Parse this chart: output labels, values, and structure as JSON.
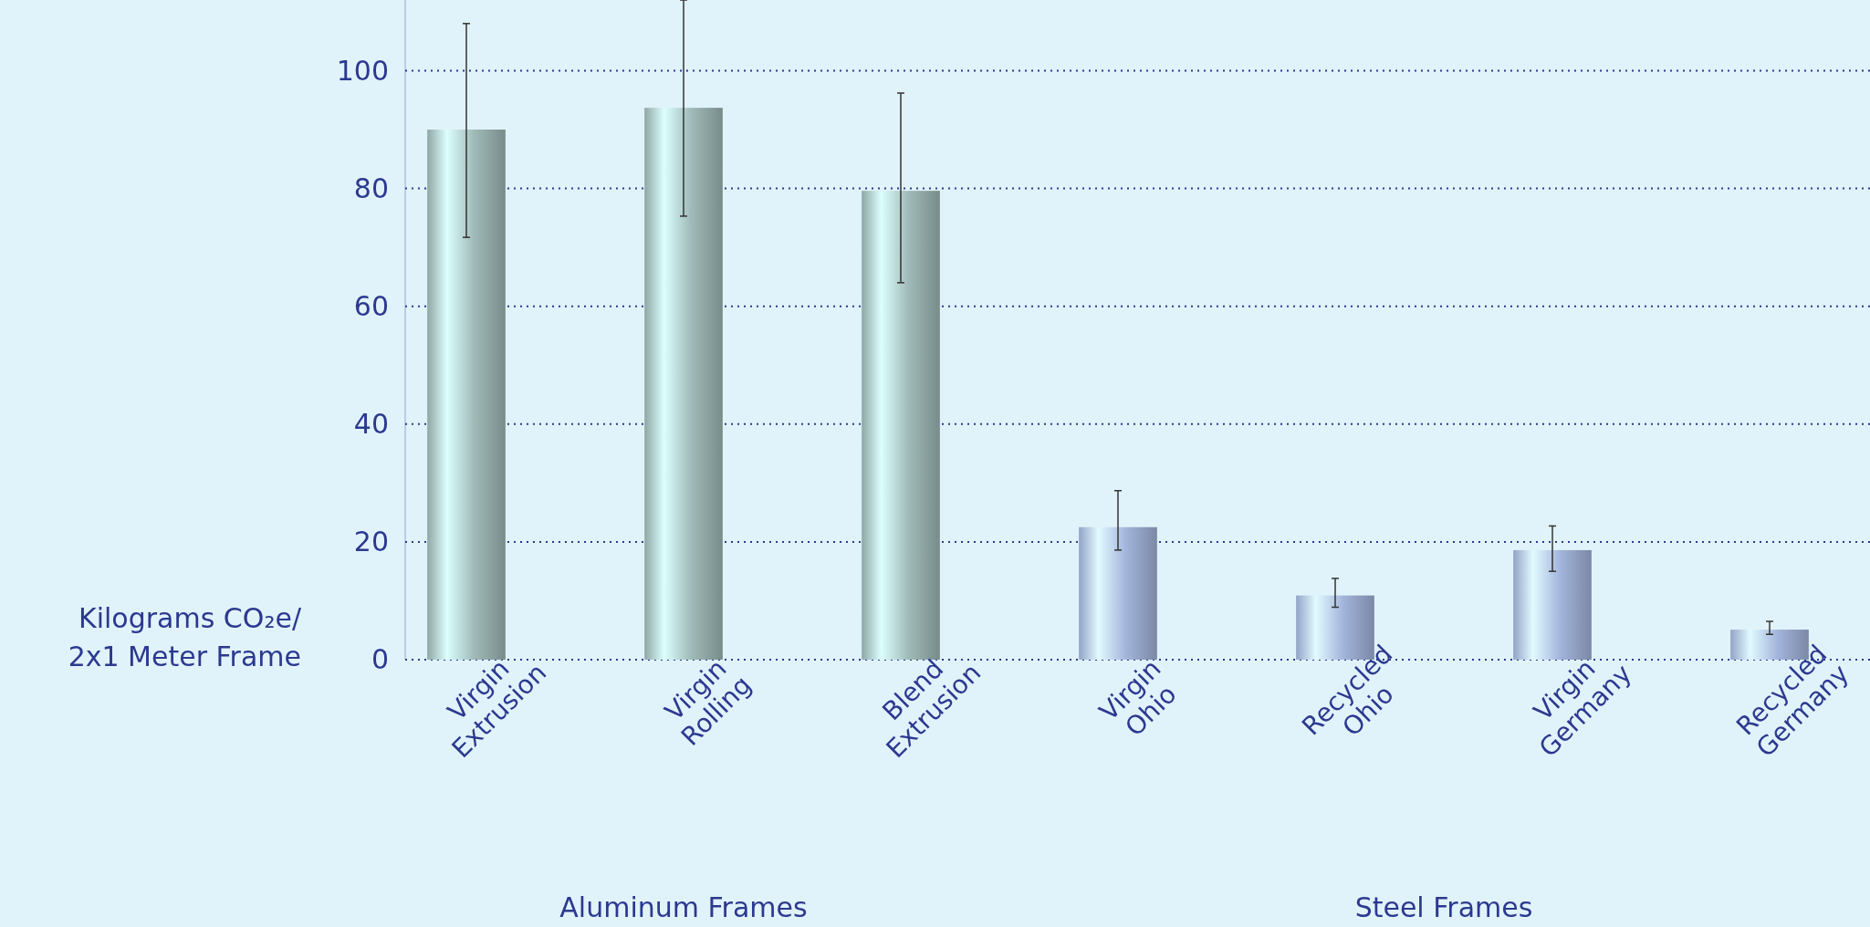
{
  "chart_data": {
    "type": "bar",
    "ylabel": "Kilograms CO₂e/ 2x1 Meter Frame",
    "categories": [
      "Virgin Extrusion",
      "Virgin Rolling",
      "Blend Extrusion",
      "Virgin Ohio",
      "Recycled Ohio",
      "Virgin Germany",
      "Recycled Germany"
    ],
    "values": [
      90,
      93.7,
      79.6,
      22.5,
      10.9,
      18.6,
      5.1
    ],
    "colors": [
      "#9fbab8",
      "#9fbab8",
      "#9fbab8",
      "#a3b5dc",
      "#a3b5dc",
      "#a3b5dc",
      "#a3b5dc"
    ],
    "errors": [
      [
        71.7,
        108
      ],
      [
        75.3,
        112
      ],
      [
        64,
        96.2
      ],
      [
        18.6,
        28.7
      ],
      [
        8.9,
        13.8
      ],
      [
        15,
        22.7
      ],
      [
        4.3,
        6.5
      ]
    ],
    "ylim": [
      0,
      112
    ],
    "yticks": [
      0,
      20,
      40,
      60,
      80,
      100
    ],
    "grid": "y",
    "annotations": [
      "Aluminum Frames",
      "Steel Frames"
    ]
  }
}
